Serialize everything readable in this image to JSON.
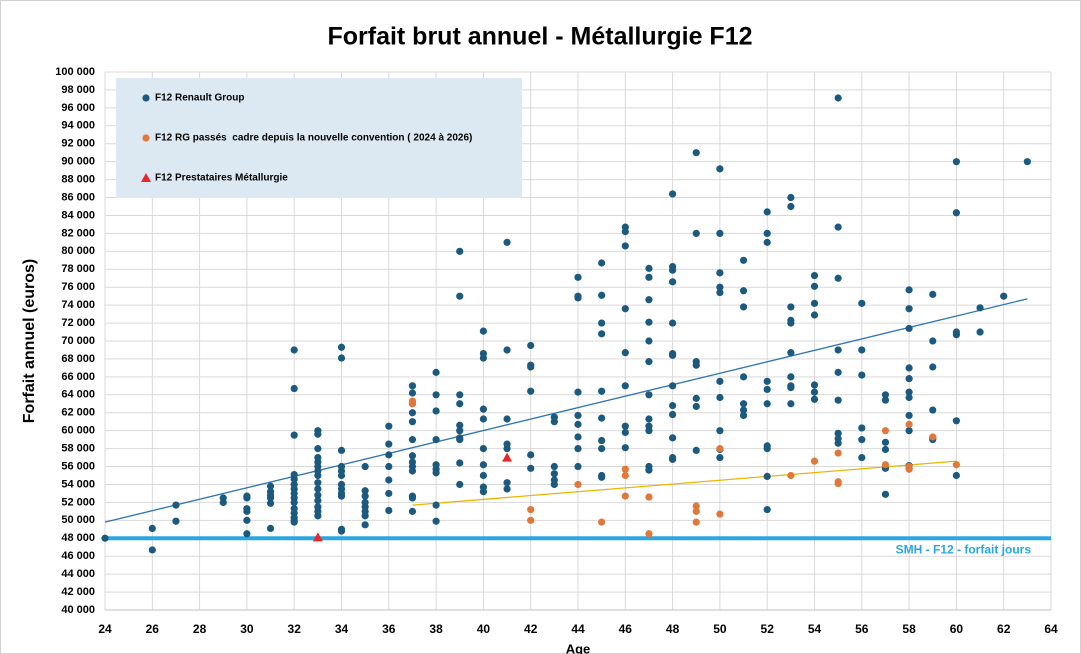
{
  "chart_data": {
    "type": "scatter",
    "title": "Forfait brut annuel - Métallurgie F12",
    "x_label": "Age",
    "y_label": "Forfait annuel (euros)",
    "xlim": [
      24,
      64
    ],
    "xticks": [
      24,
      26,
      28,
      30,
      32,
      34,
      36,
      38,
      40,
      42,
      44,
      46,
      48,
      50,
      52,
      54,
      56,
      58,
      60,
      62,
      64
    ],
    "ylim": [
      40000,
      100000
    ],
    "yticks": [
      {
        "value": 40000,
        "label": "40 000"
      },
      {
        "value": 42000,
        "label": "42 000"
      },
      {
        "value": 44000,
        "label": "44 000"
      },
      {
        "value": 46000,
        "label": "46 000"
      },
      {
        "value": 48000,
        "label": "48 000"
      },
      {
        "value": 50000,
        "label": "50 000"
      },
      {
        "value": 52000,
        "label": "52 000"
      },
      {
        "value": 54000,
        "label": "54 000"
      },
      {
        "value": 56000,
        "label": "56 000"
      },
      {
        "value": 58000,
        "label": "58 000"
      },
      {
        "value": 60000,
        "label": "60 000"
      },
      {
        "value": 62000,
        "label": "62 000"
      },
      {
        "value": 64000,
        "label": "64 000"
      },
      {
        "value": 66000,
        "label": "66 000"
      },
      {
        "value": 68000,
        "label": "68 000"
      },
      {
        "value": 70000,
        "label": "70 000"
      },
      {
        "value": 72000,
        "label": "72 000"
      },
      {
        "value": 74000,
        "label": "74 000"
      },
      {
        "value": 76000,
        "label": "76 000"
      },
      {
        "value": 78000,
        "label": "78 000"
      },
      {
        "value": 80000,
        "label": "80 000"
      },
      {
        "value": 82000,
        "label": "82 000"
      },
      {
        "value": 84000,
        "label": "84 000"
      },
      {
        "value": 86000,
        "label": "86 000"
      },
      {
        "value": 88000,
        "label": "88 000"
      },
      {
        "value": 90000,
        "label": "90 000"
      },
      {
        "value": 92000,
        "label": "92 000"
      },
      {
        "value": 94000,
        "label": "94 000"
      },
      {
        "value": 96000,
        "label": "96 000"
      },
      {
        "value": 98000,
        "label": "98 000"
      },
      {
        "value": 100000,
        "label": "100 000"
      }
    ],
    "grid": true,
    "series": [
      {
        "name": "F12 Renault Group",
        "color": "#1b5a7e",
        "marker": "circle",
        "x": [
          24,
          26,
          26,
          27,
          27,
          29,
          29,
          30,
          30,
          30,
          30,
          30,
          30,
          31,
          31,
          31,
          31,
          31,
          31,
          32,
          32,
          32,
          32,
          32,
          32,
          32,
          32,
          32,
          32,
          32,
          32,
          32,
          32,
          32,
          33,
          33,
          33,
          33,
          33,
          33,
          33,
          33,
          33,
          33,
          33,
          33,
          33,
          33,
          33,
          34,
          34,
          34,
          34,
          34,
          34,
          34,
          34,
          34,
          34,
          34,
          34,
          35,
          35,
          35,
          35,
          35,
          35,
          35,
          35,
          36,
          36,
          36,
          36,
          36,
          36,
          36,
          37,
          37,
          37,
          37,
          37,
          37,
          37,
          37,
          37,
          37,
          37,
          37,
          37,
          38,
          38,
          38,
          38,
          38,
          38,
          38,
          38,
          38,
          39,
          39,
          39,
          39,
          39,
          39,
          39,
          39,
          39,
          39,
          40,
          40,
          40,
          40,
          40,
          40,
          40,
          40,
          40,
          40,
          41,
          41,
          41,
          41,
          41,
          41,
          41,
          42,
          42,
          42,
          42,
          42,
          42,
          43,
          43,
          43,
          43,
          43,
          43,
          44,
          44,
          44,
          44,
          44,
          44,
          44,
          44,
          44,
          45,
          45,
          45,
          45,
          45,
          45,
          45,
          45,
          45,
          45,
          46,
          46,
          46,
          46,
          46,
          46,
          46,
          46,
          46,
          47,
          47,
          47,
          47,
          47,
          47,
          47,
          47,
          47,
          47,
          47,
          47,
          48,
          48,
          48,
          48,
          48,
          48,
          48,
          48,
          48,
          48,
          48,
          48,
          48,
          49,
          49,
          49,
          49,
          49,
          49,
          49,
          50,
          50,
          50,
          50,
          50,
          50,
          50,
          50,
          50,
          50,
          51,
          51,
          51,
          51,
          51,
          51,
          51,
          52,
          52,
          52,
          52,
          52,
          52,
          52,
          52,
          52,
          52,
          53,
          53,
          53,
          53,
          53,
          53,
          53,
          53,
          53,
          53,
          54,
          54,
          54,
          54,
          54,
          54,
          54,
          55,
          55,
          55,
          55,
          55,
          55,
          55,
          55,
          55,
          56,
          56,
          56,
          56,
          56,
          56,
          57,
          57,
          57,
          57,
          57,
          57,
          58,
          58,
          58,
          58,
          58,
          58,
          58,
          58,
          58,
          58,
          58,
          59,
          59,
          59,
          59,
          59,
          59,
          60,
          60,
          60,
          60,
          60,
          60,
          61,
          61,
          62,
          63
        ],
        "values": [
          48000,
          49100,
          46700,
          51700,
          49900,
          52500,
          52000,
          52700,
          52500,
          51300,
          51000,
          50000,
          48500,
          53800,
          53200,
          52800,
          52500,
          51900,
          49100,
          69000,
          64700,
          59500,
          55100,
          54600,
          54000,
          53500,
          53000,
          52500,
          52000,
          51300,
          50800,
          50300,
          50000,
          49800,
          60000,
          59600,
          58000,
          57000,
          56500,
          56000,
          55500,
          55000,
          54200,
          53500,
          52800,
          52200,
          51500,
          51000,
          50500,
          69300,
          68100,
          57800,
          56000,
          55500,
          55000,
          54000,
          53500,
          53000,
          52700,
          49000,
          48800,
          56000,
          53300,
          52700,
          52000,
          51500,
          51000,
          50500,
          49500,
          60500,
          58500,
          57300,
          56000,
          54500,
          53000,
          51100,
          65000,
          64200,
          63000,
          62000,
          61000,
          59000,
          57200,
          56500,
          56000,
          55500,
          52700,
          52500,
          51000,
          66500,
          64000,
          62200,
          59000,
          56200,
          55700,
          55300,
          51700,
          49900,
          80000,
          75000,
          64000,
          63000,
          60600,
          60000,
          59200,
          59000,
          56400,
          54000,
          71100,
          68600,
          68100,
          62400,
          61300,
          58000,
          56200,
          55000,
          53700,
          53200,
          81000,
          69000,
          61300,
          58500,
          58000,
          54200,
          53500,
          69500,
          67300,
          67100,
          64400,
          57300,
          55800,
          61500,
          61000,
          56000,
          55200,
          54500,
          54000,
          77100,
          75000,
          74800,
          64300,
          61700,
          60700,
          59300,
          58000,
          56000,
          78700,
          75100,
          72000,
          70800,
          64400,
          61400,
          58900,
          58000,
          55000,
          54800,
          82700,
          82200,
          80600,
          73600,
          68700,
          65000,
          60500,
          59800,
          58100,
          78100,
          77100,
          74600,
          72100,
          70000,
          67700,
          64000,
          61300,
          60500,
          60000,
          56000,
          55600,
          86400,
          78300,
          77900,
          76600,
          72000,
          68600,
          68400,
          65000,
          62800,
          61800,
          59200,
          57000,
          56800,
          91000,
          82000,
          67700,
          67300,
          63600,
          62700,
          57800,
          89200,
          82000,
          77600,
          76000,
          75400,
          65500,
          63700,
          60000,
          57900,
          57000,
          79000,
          75600,
          73800,
          66000,
          63000,
          62300,
          61700,
          84400,
          82000,
          81000,
          65500,
          64600,
          63000,
          58300,
          58000,
          54900,
          51200,
          86000,
          85000,
          73800,
          72300,
          72000,
          68700,
          66000,
          65000,
          64800,
          63000,
          77300,
          76100,
          74200,
          72900,
          65100,
          64300,
          63500,
          97100,
          82700,
          77000,
          69000,
          66500,
          63400,
          59700,
          59100,
          58600,
          74200,
          69000,
          66200,
          60300,
          59000,
          57000,
          64000,
          63400,
          58700,
          57900,
          55800,
          52900,
          75700,
          73600,
          71400,
          67000,
          65800,
          64300,
          63700,
          61700,
          60000,
          56100,
          55800,
          75200,
          70000,
          67100,
          62300,
          59200,
          59000,
          90000,
          84300,
          71000,
          70700,
          61100,
          55000,
          73700,
          71000,
          75000,
          90000
        ]
      },
      {
        "name": "F12 RG passés  cadre depuis la nouvelle convention ( 2024 à 2026)",
        "color": "#e2773a",
        "marker": "circle",
        "x": [
          37,
          37,
          42,
          42,
          44,
          45,
          46,
          46,
          46,
          47,
          47,
          49,
          49,
          49,
          50,
          50,
          53,
          54,
          55,
          55,
          55,
          57,
          57,
          58,
          58,
          58,
          59,
          60
        ],
        "values": [
          63300,
          63000,
          51200,
          50000,
          54000,
          49800,
          55700,
          55000,
          52700,
          52600,
          48500,
          51600,
          51000,
          49800,
          58000,
          50700,
          55000,
          56600,
          57500,
          54300,
          54100,
          60000,
          56200,
          60700,
          56000,
          55700,
          59300,
          56200
        ]
      },
      {
        "name": "F12 Prestataires Métallurgie",
        "color": "#e8262a",
        "marker": "triangle",
        "x": [
          33,
          41
        ],
        "values": [
          48100,
          57000
        ]
      }
    ],
    "trendlines": [
      {
        "color": "#2e75b6",
        "x": [
          24,
          63
        ],
        "values": [
          49800,
          74700
        ]
      },
      {
        "color": "#f0b400",
        "x": [
          37,
          60
        ],
        "values": [
          51700,
          56600
        ]
      }
    ],
    "reference_line": {
      "value": 48000,
      "label": "SMH - F12 - forfait jours",
      "color": "#2aa7e1"
    }
  }
}
